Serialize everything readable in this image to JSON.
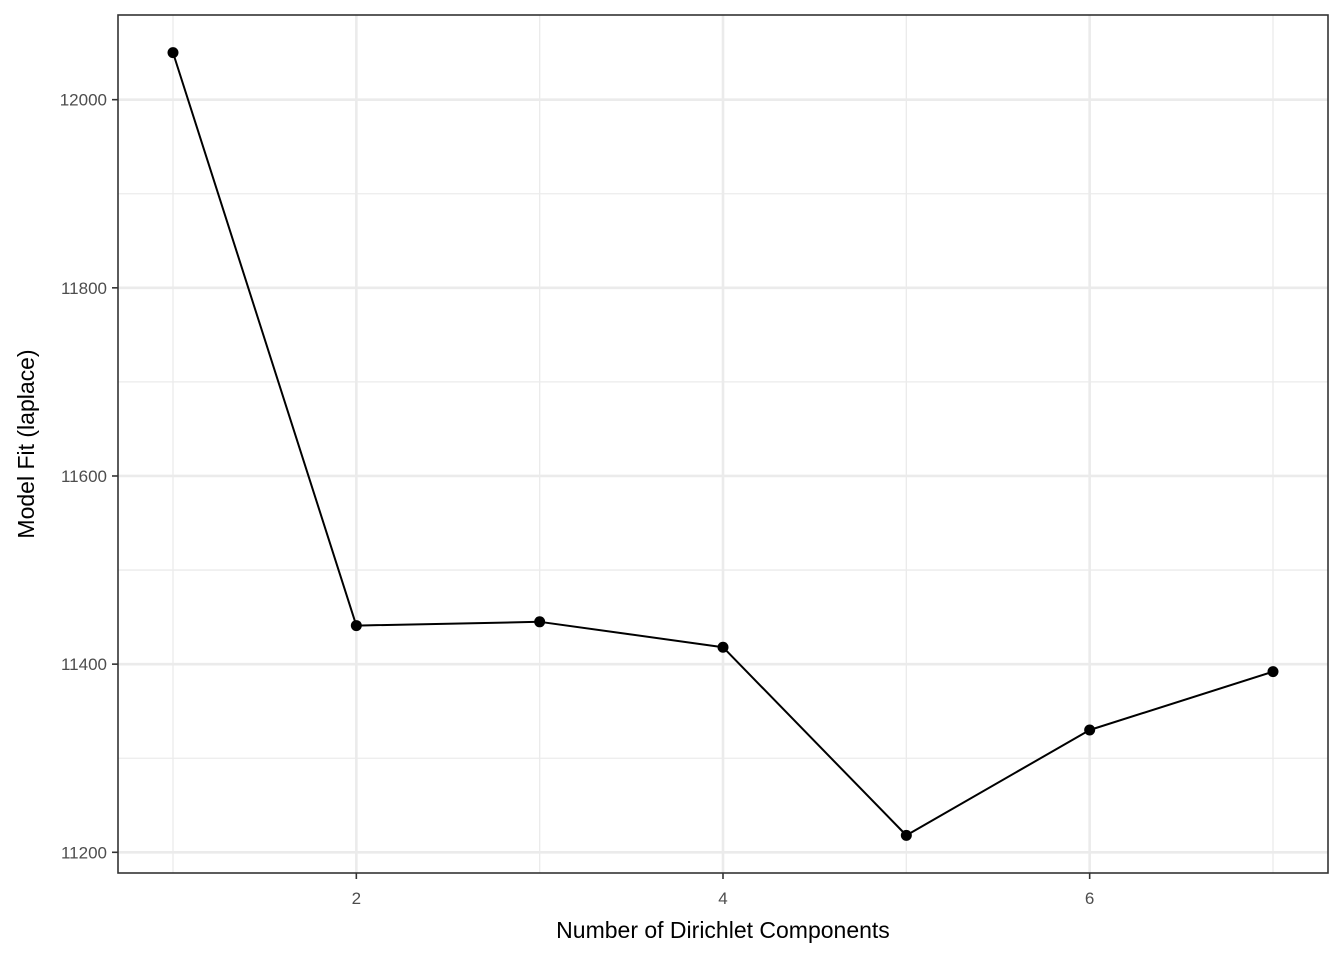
{
  "chart_data": {
    "type": "line",
    "title": "",
    "xlabel": "Number of Dirichlet Components",
    "ylabel": "Model Fit (laplace)",
    "x": [
      1,
      2,
      3,
      4,
      5,
      6,
      7
    ],
    "series": [
      {
        "values": [
          12050,
          11441,
          11445,
          11418,
          11218,
          11330,
          11392
        ]
      }
    ],
    "xlim": [
      0.7,
      7.3
    ],
    "ylim": [
      11178,
      12090
    ],
    "x_major_ticks": [
      2,
      4,
      6
    ],
    "x_tick_labels": [
      "2",
      "4",
      "6"
    ],
    "x_minor_ticks": [
      1,
      3,
      5,
      7
    ],
    "y_major_ticks": [
      11200,
      11400,
      11600,
      11800,
      12000
    ],
    "y_tick_labels": [
      "11200",
      "11400",
      "11600",
      "11800",
      "12000"
    ],
    "y_minor_ticks": [
      11300,
      11500,
      11700,
      11900
    ],
    "grid": true,
    "legend": "none",
    "colors": {
      "line": "#000000",
      "points": "#000000",
      "grid": "#ebebeb",
      "panel_border": "#333333",
      "background": "#ffffff"
    }
  }
}
